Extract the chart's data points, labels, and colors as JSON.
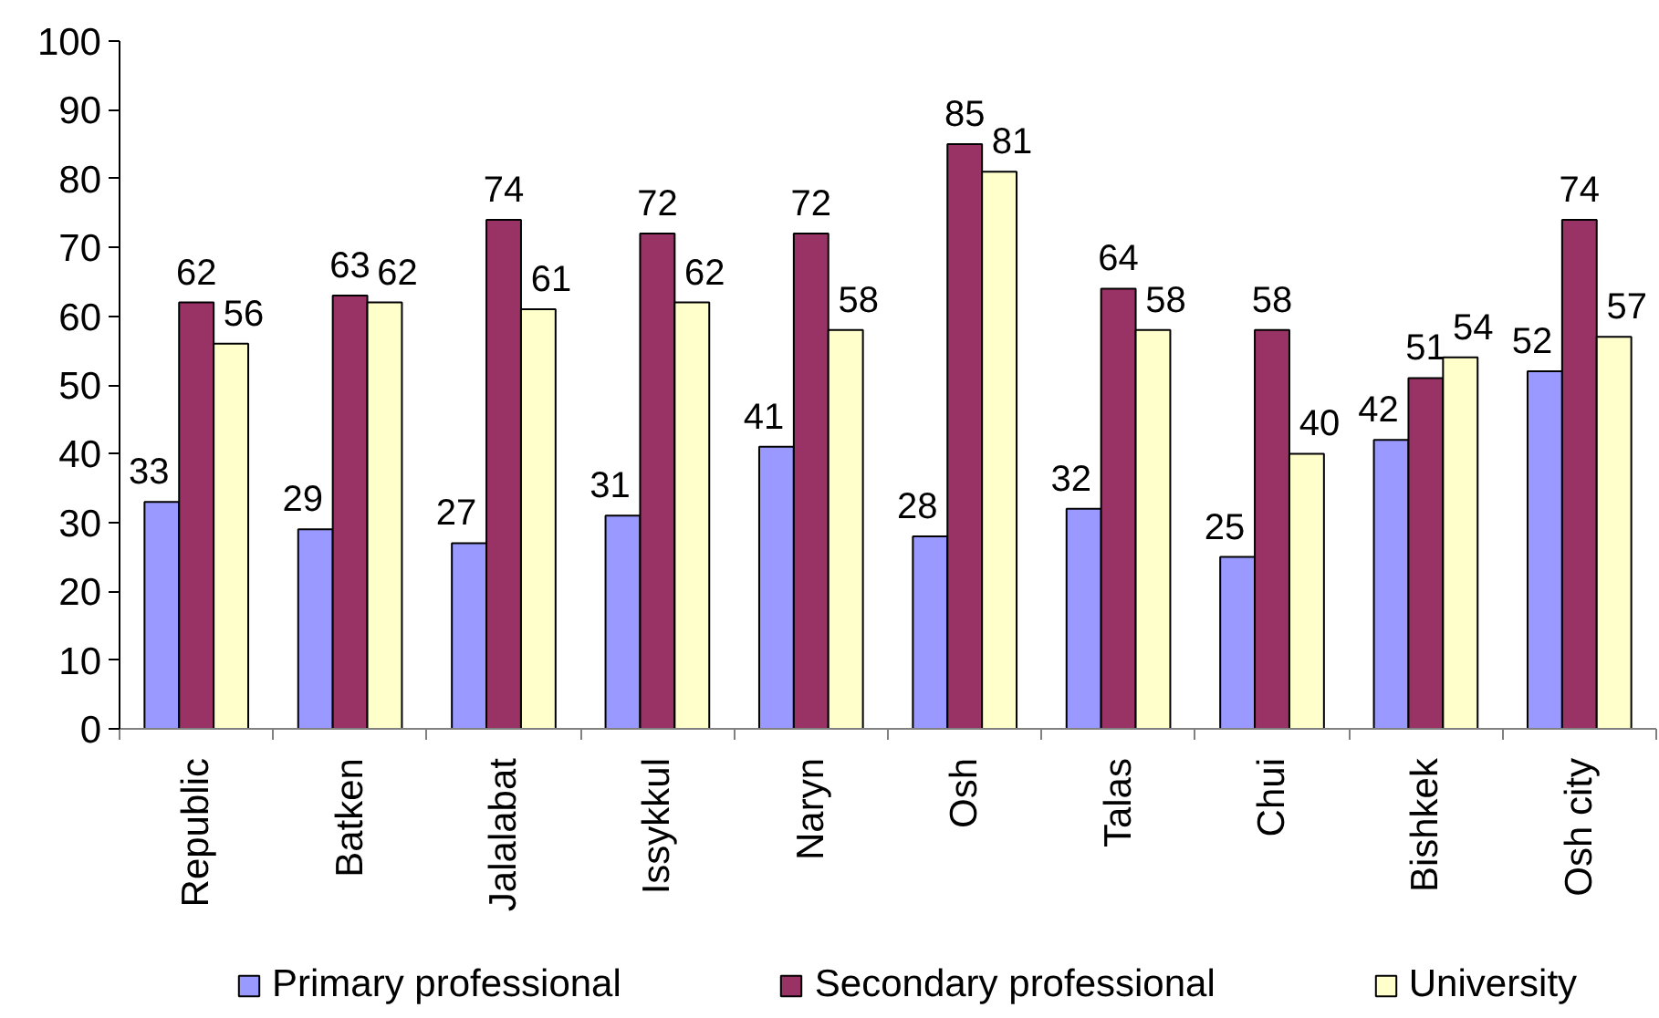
{
  "chart_data": {
    "type": "bar",
    "categories": [
      "Republic",
      "Batken",
      "Jalalabat",
      "Issykkul",
      "Naryn",
      "Osh",
      "Talas",
      "Chui",
      "Bishkek",
      "Osh city"
    ],
    "series": [
      {
        "name": "Primary professional",
        "color": "#9999ff",
        "values": [
          33,
          29,
          27,
          31,
          41,
          28,
          32,
          25,
          42,
          52
        ]
      },
      {
        "name": "Secondary professional",
        "color": "#993366",
        "values": [
          62,
          63,
          74,
          72,
          72,
          85,
          64,
          58,
          51,
          74
        ]
      },
      {
        "name": "University",
        "color": "#ffffcc",
        "values": [
          56,
          62,
          61,
          62,
          58,
          81,
          58,
          40,
          54,
          57
        ]
      }
    ],
    "ylim": [
      0,
      100
    ],
    "yticks": [
      0,
      10,
      20,
      30,
      40,
      50,
      60,
      70,
      80,
      90,
      100
    ],
    "data_labels": true,
    "legend": "bottom",
    "grid": false
  }
}
